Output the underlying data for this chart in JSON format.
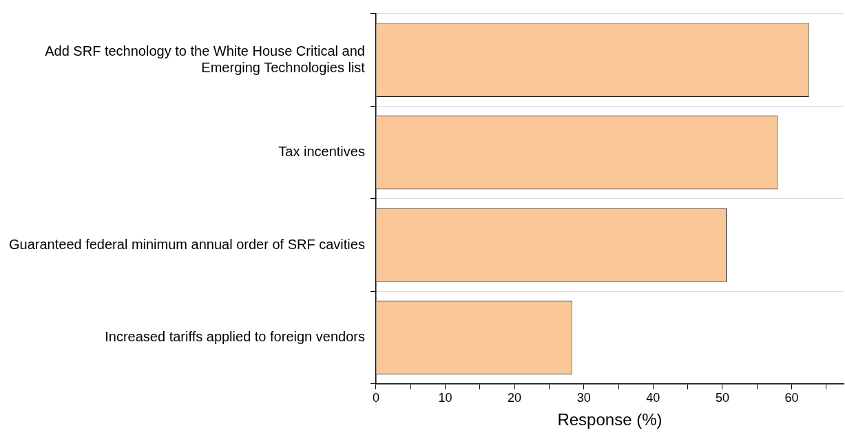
{
  "chart_data": {
    "type": "bar",
    "orientation": "horizontal",
    "xlabel": "Response (%)",
    "categories": [
      "Add SRF technology to the White House Critical and Emerging Technologies list",
      "Tax incentives",
      "Guaranteed federal minimum annual order of SRF cavities",
      "Increased tariffs applied to foreign vendors"
    ],
    "values": [
      62.5,
      58.0,
      50.6,
      28.3
    ],
    "color": "#fac898",
    "xlim": [
      0,
      67.5
    ],
    "xticks": [
      0,
      {
        "value": 5,
        "label": null
      },
      10,
      {
        "value": 15,
        "label": null
      },
      20,
      {
        "value": 25,
        "label": null
      },
      30,
      {
        "value": 35,
        "label": null
      },
      40,
      {
        "value": 45,
        "label": null
      },
      50,
      {
        "value": 55,
        "label": null
      },
      60,
      {
        "value": 65,
        "label": null
      }
    ],
    "grid": "y"
  }
}
